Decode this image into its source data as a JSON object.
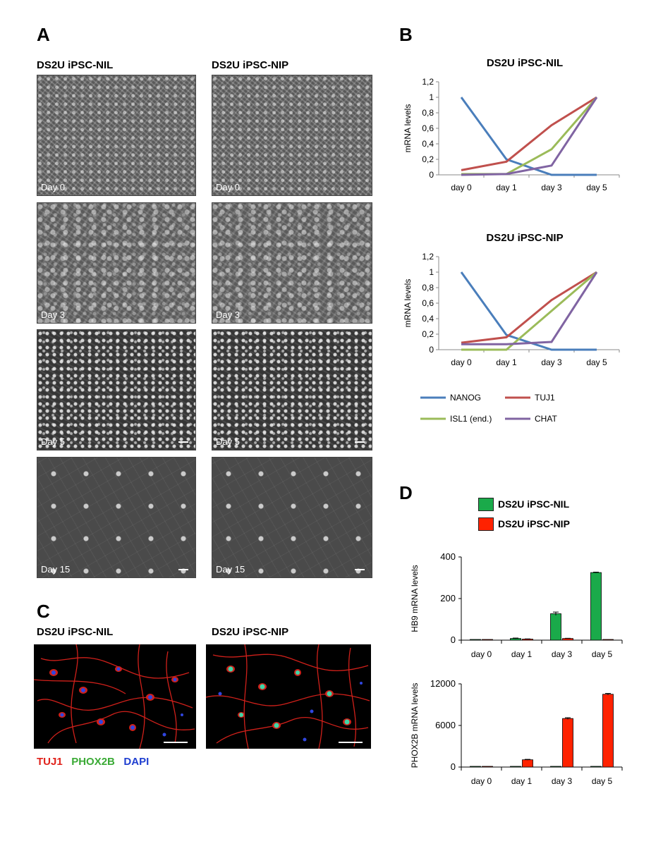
{
  "panels": {
    "a": {
      "letter": "A",
      "col_left_title": "DS2U iPSC-NIL",
      "col_right_title": "DS2U iPSC-NIP",
      "days": [
        "Day 0",
        "Day 3",
        "Day 5",
        "Day 15"
      ]
    },
    "b": {
      "letter": "B",
      "legend": [
        "NANOG",
        "TUJ1",
        "ISL1 (end.)",
        "CHAT"
      ]
    },
    "c": {
      "letter": "C",
      "left_title": "DS2U iPSC-NIL",
      "right_title": "DS2U iPSC-NIP",
      "stains": [
        "TUJ1",
        "PHOX2B",
        "DAPI"
      ]
    },
    "d": {
      "letter": "D",
      "legend": [
        "DS2U iPSC-NIL",
        "DS2U iPSC-NIP"
      ]
    }
  },
  "colors": {
    "nanog": "#4a7ebb",
    "tuj1": "#c0504d",
    "isl1": "#9bbb59",
    "chat": "#8064a2",
    "nil_bar": "#1aaa4a",
    "nip_bar": "#ff2200",
    "stain_tuj1": "#e0221b",
    "stain_phox2b": "#3aaa35",
    "stain_dapi": "#1f3fd0"
  },
  "chart_data": [
    {
      "id": "b1",
      "type": "line",
      "title": "DS2U iPSC-NIL",
      "xlabel": "",
      "ylabel": "mRNA levels",
      "categories": [
        "day 0",
        "day 1",
        "day 3",
        "day 5"
      ],
      "ylim": [
        0,
        1.2
      ],
      "yticks": [
        "0",
        "0,2",
        "0,4",
        "0,6",
        "0,8",
        "1",
        "1,2"
      ],
      "series": [
        {
          "name": "NANOG",
          "values": [
            1.0,
            0.2,
            0.0,
            0.0
          ]
        },
        {
          "name": "TUJ1",
          "values": [
            0.06,
            0.17,
            0.64,
            1.0
          ]
        },
        {
          "name": "ISL1 (end.)",
          "values": [
            0.01,
            0.01,
            0.33,
            1.0
          ]
        },
        {
          "name": "CHAT",
          "values": [
            0.0,
            0.01,
            0.12,
            1.0
          ]
        }
      ]
    },
    {
      "id": "b2",
      "type": "line",
      "title": "DS2U iPSC-NIP",
      "xlabel": "",
      "ylabel": "mRNA levels",
      "categories": [
        "day 0",
        "day 1",
        "day 3",
        "day 5"
      ],
      "ylim": [
        0,
        1.2
      ],
      "yticks": [
        "0",
        "0,2",
        "0,4",
        "0,6",
        "0,8",
        "1",
        "1,2"
      ],
      "series": [
        {
          "name": "NANOG",
          "values": [
            1.0,
            0.19,
            0.0,
            0.0
          ]
        },
        {
          "name": "TUJ1",
          "values": [
            0.09,
            0.16,
            0.64,
            1.0
          ]
        },
        {
          "name": "ISL1 (end.)",
          "values": [
            0.0,
            0.0,
            0.5,
            1.0
          ]
        },
        {
          "name": "CHAT",
          "values": [
            0.07,
            0.07,
            0.1,
            1.0
          ]
        }
      ]
    },
    {
      "id": "d1",
      "type": "bar",
      "title": "",
      "xlabel": "",
      "ylabel": "HB9 mRNA levels",
      "categories": [
        "day 0",
        "day 1",
        "day 3",
        "day 5"
      ],
      "ylim": [
        0,
        400
      ],
      "yticks": [
        "0",
        "200",
        "400"
      ],
      "series": [
        {
          "name": "DS2U iPSC-NIL",
          "values": [
            1,
            8,
            127,
            325
          ],
          "errors": [
            0,
            2,
            8,
            2
          ]
        },
        {
          "name": "DS2U iPSC-NIP",
          "values": [
            1,
            5,
            8,
            1
          ],
          "errors": [
            0,
            1,
            1,
            0
          ]
        }
      ]
    },
    {
      "id": "d2",
      "type": "bar",
      "title": "",
      "xlabel": "",
      "ylabel": "PHOX2B mRNA levels",
      "categories": [
        "day 0",
        "day 1",
        "day 3",
        "day 5"
      ],
      "ylim": [
        0,
        12000
      ],
      "yticks": [
        "0",
        "6000",
        "12000"
      ],
      "series": [
        {
          "name": "DS2U iPSC-NIL",
          "values": [
            10,
            10,
            10,
            10
          ],
          "errors": [
            0,
            0,
            0,
            0
          ]
        },
        {
          "name": "DS2U iPSC-NIP",
          "values": [
            10,
            1050,
            7000,
            10500
          ],
          "errors": [
            0,
            60,
            120,
            120
          ]
        }
      ]
    }
  ]
}
